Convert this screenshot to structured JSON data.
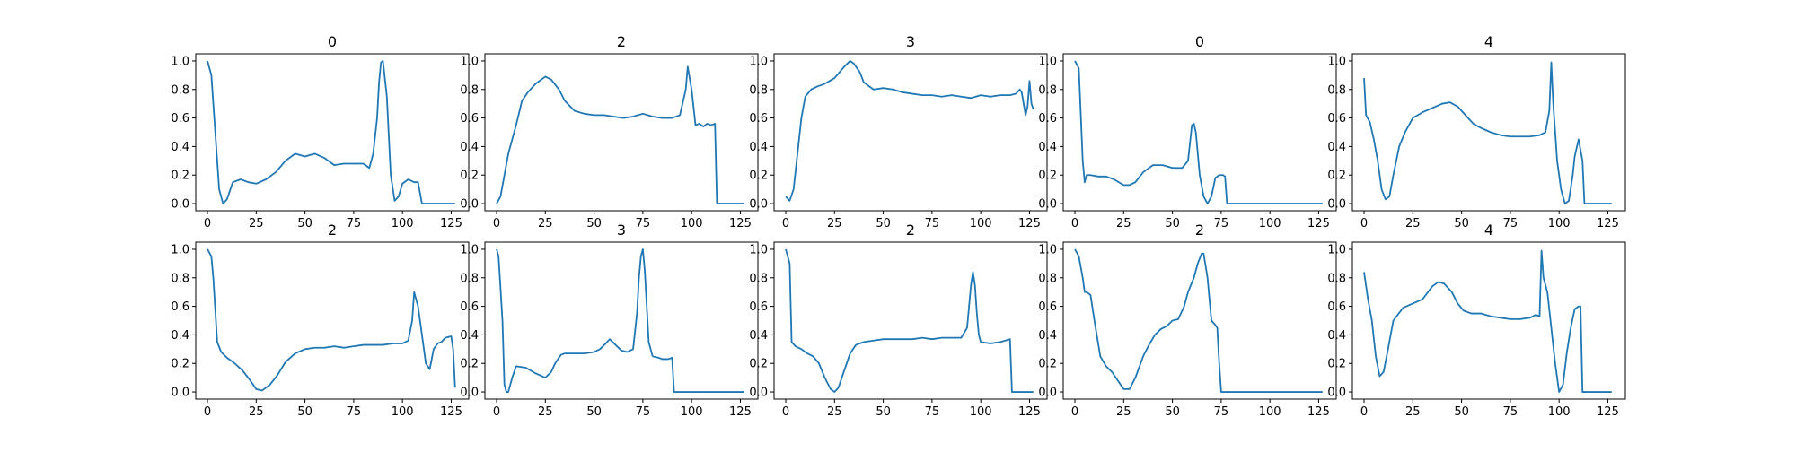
{
  "figure": {
    "line_color": "#1f77b4",
    "axis_color": "#000000",
    "background": "#ffffff"
  },
  "chart_data": [
    {
      "type": "line",
      "title": "0",
      "xlim": [
        -6,
        134
      ],
      "ylim": [
        -0.05,
        1.05
      ],
      "xticks": [
        0,
        25,
        50,
        75,
        100,
        125
      ],
      "yticks": [
        0.0,
        0.2,
        0.4,
        0.6,
        0.8,
        1.0
      ],
      "grid": false,
      "x": [
        0,
        2,
        4,
        6,
        8,
        10,
        13,
        17,
        21,
        25,
        30,
        35,
        40,
        45,
        50,
        55,
        60,
        65,
        70,
        75,
        80,
        83,
        85,
        87,
        88,
        89,
        90,
        92,
        94,
        96,
        98,
        100,
        103,
        106,
        108,
        110,
        111,
        112,
        115,
        120,
        125,
        127
      ],
      "y": [
        1.0,
        0.9,
        0.5,
        0.1,
        0.0,
        0.03,
        0.15,
        0.17,
        0.15,
        0.14,
        0.17,
        0.22,
        0.3,
        0.35,
        0.33,
        0.35,
        0.32,
        0.27,
        0.28,
        0.28,
        0.28,
        0.25,
        0.35,
        0.6,
        0.85,
        0.99,
        1.0,
        0.75,
        0.2,
        0.02,
        0.05,
        0.14,
        0.17,
        0.15,
        0.15,
        0.0,
        0.0,
        0.0,
        0.0,
        0.0,
        0.0,
        0.0
      ]
    },
    {
      "type": "line",
      "title": "2",
      "xlim": [
        -6,
        134
      ],
      "ylim": [
        -0.05,
        1.05
      ],
      "xticks": [
        0,
        25,
        50,
        75,
        100,
        125
      ],
      "yticks": [
        0.0,
        0.2,
        0.4,
        0.6,
        0.8,
        1.0
      ],
      "grid": false,
      "x": [
        0,
        2,
        4,
        6,
        8,
        10,
        13,
        16,
        20,
        25,
        28,
        32,
        35,
        40,
        45,
        50,
        55,
        60,
        65,
        70,
        75,
        80,
        85,
        90,
        94,
        97,
        98,
        100,
        102,
        104,
        106,
        108,
        110,
        112,
        113,
        115,
        120,
        125,
        127
      ],
      "y": [
        0.0,
        0.05,
        0.2,
        0.35,
        0.45,
        0.55,
        0.72,
        0.78,
        0.84,
        0.89,
        0.87,
        0.8,
        0.72,
        0.65,
        0.63,
        0.62,
        0.62,
        0.61,
        0.6,
        0.61,
        0.63,
        0.61,
        0.6,
        0.6,
        0.62,
        0.8,
        0.96,
        0.8,
        0.55,
        0.56,
        0.54,
        0.56,
        0.55,
        0.56,
        0.0,
        0.0,
        0.0,
        0.0,
        0.0
      ]
    },
    {
      "type": "line",
      "title": "3",
      "xlim": [
        -6,
        134
      ],
      "ylim": [
        -0.05,
        1.05
      ],
      "xticks": [
        0,
        25,
        50,
        75,
        100,
        125
      ],
      "yticks": [
        0.0,
        0.2,
        0.4,
        0.6,
        0.8,
        1.0
      ],
      "grid": false,
      "x": [
        0,
        2,
        4,
        6,
        8,
        10,
        13,
        16,
        20,
        25,
        30,
        33,
        35,
        38,
        40,
        45,
        50,
        55,
        60,
        65,
        70,
        75,
        80,
        85,
        90,
        95,
        100,
        105,
        110,
        115,
        118,
        120,
        121,
        122,
        123,
        124,
        125,
        126,
        127
      ],
      "y": [
        0.05,
        0.02,
        0.1,
        0.35,
        0.6,
        0.75,
        0.8,
        0.82,
        0.84,
        0.88,
        0.96,
        1.0,
        0.98,
        0.92,
        0.85,
        0.8,
        0.81,
        0.8,
        0.78,
        0.77,
        0.76,
        0.76,
        0.75,
        0.76,
        0.75,
        0.74,
        0.76,
        0.75,
        0.76,
        0.76,
        0.77,
        0.8,
        0.78,
        0.7,
        0.62,
        0.68,
        0.86,
        0.7,
        0.66
      ]
    },
    {
      "type": "line",
      "title": "0",
      "xlim": [
        -6,
        134
      ],
      "ylim": [
        -0.05,
        1.05
      ],
      "xticks": [
        0,
        25,
        50,
        75,
        100,
        125
      ],
      "yticks": [
        0.0,
        0.2,
        0.4,
        0.6,
        0.8,
        1.0
      ],
      "grid": false,
      "x": [
        0,
        2,
        4,
        5,
        6,
        8,
        12,
        16,
        20,
        25,
        28,
        31,
        35,
        40,
        45,
        50,
        55,
        58,
        60,
        61,
        62,
        64,
        66,
        68,
        70,
        72,
        74,
        76,
        77,
        78,
        80,
        90,
        100,
        110,
        120,
        125,
        127
      ],
      "y": [
        1.0,
        0.95,
        0.3,
        0.15,
        0.2,
        0.2,
        0.19,
        0.19,
        0.17,
        0.13,
        0.13,
        0.15,
        0.22,
        0.27,
        0.27,
        0.25,
        0.25,
        0.3,
        0.55,
        0.56,
        0.5,
        0.2,
        0.05,
        0.0,
        0.05,
        0.18,
        0.2,
        0.2,
        0.19,
        0.0,
        0.0,
        0.0,
        0.0,
        0.0,
        0.0,
        0.0,
        0.0
      ]
    },
    {
      "type": "line",
      "title": "4",
      "xlim": [
        -6,
        134
      ],
      "ylim": [
        -0.05,
        1.05
      ],
      "xticks": [
        0,
        25,
        50,
        75,
        100,
        125
      ],
      "yticks": [
        0.0,
        0.2,
        0.4,
        0.6,
        0.8,
        1.0
      ],
      "grid": false,
      "x": [
        0,
        1,
        3,
        5,
        7,
        9,
        11,
        13,
        15,
        18,
        21,
        25,
        30,
        35,
        40,
        44,
        48,
        52,
        56,
        60,
        65,
        70,
        75,
        80,
        85,
        90,
        93,
        95,
        96,
        97,
        99,
        101,
        103,
        105,
        107,
        108,
        110,
        112,
        113,
        114,
        115,
        120,
        125,
        127
      ],
      "y": [
        0.88,
        0.62,
        0.57,
        0.45,
        0.3,
        0.1,
        0.03,
        0.05,
        0.2,
        0.4,
        0.5,
        0.6,
        0.64,
        0.67,
        0.7,
        0.71,
        0.68,
        0.62,
        0.56,
        0.53,
        0.5,
        0.48,
        0.47,
        0.47,
        0.47,
        0.48,
        0.5,
        0.65,
        0.99,
        0.7,
        0.3,
        0.1,
        0.0,
        0.02,
        0.2,
        0.33,
        0.45,
        0.3,
        0.0,
        0.0,
        0.0,
        0.0,
        0.0,
        0.0
      ]
    },
    {
      "type": "line",
      "title": "2",
      "xlim": [
        -6,
        134
      ],
      "ylim": [
        -0.05,
        1.05
      ],
      "xticks": [
        0,
        25,
        50,
        75,
        100,
        125
      ],
      "yticks": [
        0.0,
        0.2,
        0.4,
        0.6,
        0.8,
        1.0
      ],
      "grid": false,
      "x": [
        0,
        2,
        3,
        5,
        7,
        10,
        14,
        18,
        22,
        25,
        28,
        32,
        36,
        40,
        45,
        50,
        55,
        60,
        65,
        70,
        75,
        80,
        85,
        90,
        95,
        100,
        103,
        105,
        106,
        108,
        110,
        112,
        114,
        116,
        118,
        120,
        122,
        125,
        126,
        127
      ],
      "y": [
        1.0,
        0.95,
        0.8,
        0.35,
        0.28,
        0.24,
        0.2,
        0.15,
        0.08,
        0.02,
        0.01,
        0.05,
        0.12,
        0.21,
        0.27,
        0.3,
        0.31,
        0.31,
        0.32,
        0.31,
        0.32,
        0.33,
        0.33,
        0.33,
        0.34,
        0.34,
        0.36,
        0.5,
        0.7,
        0.6,
        0.4,
        0.2,
        0.16,
        0.3,
        0.34,
        0.35,
        0.38,
        0.39,
        0.3,
        0.03
      ]
    },
    {
      "type": "line",
      "title": "3",
      "xlim": [
        -6,
        134
      ],
      "ylim": [
        -0.05,
        1.05
      ],
      "xticks": [
        0,
        25,
        50,
        75,
        100,
        125
      ],
      "yticks": [
        0.0,
        0.2,
        0.4,
        0.6,
        0.8,
        1.0
      ],
      "grid": false,
      "x": [
        0,
        1,
        3,
        4,
        5,
        6,
        8,
        10,
        15,
        20,
        25,
        28,
        30,
        33,
        35,
        40,
        45,
        50,
        53,
        56,
        58,
        61,
        64,
        67,
        70,
        72,
        73,
        74,
        75,
        76,
        77,
        78,
        80,
        83,
        85,
        88,
        90,
        91,
        92,
        95,
        100,
        110,
        120,
        127
      ],
      "y": [
        1.0,
        0.95,
        0.5,
        0.05,
        0.0,
        0.0,
        0.1,
        0.18,
        0.17,
        0.13,
        0.1,
        0.14,
        0.2,
        0.26,
        0.27,
        0.27,
        0.27,
        0.28,
        0.3,
        0.34,
        0.37,
        0.33,
        0.29,
        0.28,
        0.3,
        0.55,
        0.8,
        0.95,
        1.0,
        0.85,
        0.6,
        0.35,
        0.25,
        0.24,
        0.23,
        0.23,
        0.24,
        0.0,
        0.0,
        0.0,
        0.0,
        0.0,
        0.0,
        0.0
      ]
    },
    {
      "type": "line",
      "title": "2",
      "xlim": [
        -6,
        134
      ],
      "ylim": [
        -0.05,
        1.05
      ],
      "xticks": [
        0,
        25,
        50,
        75,
        100,
        125
      ],
      "yticks": [
        0.0,
        0.2,
        0.4,
        0.6,
        0.8,
        1.0
      ],
      "grid": false,
      "x": [
        0,
        2,
        3,
        5,
        8,
        11,
        14,
        17,
        20,
        23,
        25,
        27,
        30,
        33,
        36,
        40,
        45,
        50,
        55,
        60,
        65,
        70,
        75,
        80,
        85,
        90,
        93,
        95,
        96,
        97,
        98,
        99,
        100,
        105,
        110,
        115,
        116,
        120,
        125,
        127
      ],
      "y": [
        1.0,
        0.9,
        0.35,
        0.32,
        0.3,
        0.27,
        0.25,
        0.2,
        0.1,
        0.02,
        0.0,
        0.03,
        0.15,
        0.27,
        0.33,
        0.35,
        0.36,
        0.37,
        0.37,
        0.37,
        0.37,
        0.38,
        0.37,
        0.38,
        0.38,
        0.38,
        0.45,
        0.75,
        0.84,
        0.75,
        0.55,
        0.4,
        0.35,
        0.34,
        0.35,
        0.37,
        0.0,
        0.0,
        0.0,
        0.0
      ]
    },
    {
      "type": "line",
      "title": "2",
      "xlim": [
        -6,
        134
      ],
      "ylim": [
        -0.05,
        1.05
      ],
      "xticks": [
        0,
        25,
        50,
        75,
        100,
        125
      ],
      "yticks": [
        0.0,
        0.2,
        0.4,
        0.6,
        0.8,
        1.0
      ],
      "grid": false,
      "x": [
        0,
        2,
        4,
        5,
        6,
        8,
        10,
        13,
        16,
        19,
        22,
        25,
        28,
        31,
        35,
        38,
        41,
        44,
        47,
        50,
        53,
        56,
        58,
        61,
        63,
        65,
        66,
        68,
        70,
        72,
        73,
        74,
        75,
        80,
        90,
        100,
        110,
        120,
        125,
        127
      ],
      "y": [
        1.0,
        0.95,
        0.8,
        0.7,
        0.7,
        0.68,
        0.5,
        0.25,
        0.18,
        0.14,
        0.08,
        0.02,
        0.02,
        0.1,
        0.25,
        0.33,
        0.4,
        0.44,
        0.46,
        0.5,
        0.51,
        0.6,
        0.7,
        0.8,
        0.9,
        0.97,
        0.97,
        0.8,
        0.5,
        0.47,
        0.45,
        0.2,
        0.0,
        0.0,
        0.0,
        0.0,
        0.0,
        0.0,
        0.0,
        0.0
      ]
    },
    {
      "type": "line",
      "title": "4",
      "xlim": [
        -6,
        134
      ],
      "ylim": [
        -0.05,
        1.05
      ],
      "xticks": [
        0,
        25,
        50,
        75,
        100,
        125
      ],
      "yticks": [
        0.0,
        0.2,
        0.4,
        0.6,
        0.8,
        1.0
      ],
      "grid": false,
      "x": [
        0,
        2,
        4,
        6,
        8,
        10,
        12,
        15,
        20,
        25,
        30,
        35,
        38,
        41,
        45,
        48,
        51,
        55,
        60,
        65,
        70,
        75,
        80,
        85,
        88,
        90,
        91,
        92,
        94,
        96,
        98,
        100,
        102,
        104,
        106,
        108,
        110,
        111,
        112,
        115,
        120,
        125,
        127
      ],
      "y": [
        0.84,
        0.65,
        0.5,
        0.25,
        0.11,
        0.14,
        0.28,
        0.5,
        0.59,
        0.62,
        0.65,
        0.74,
        0.77,
        0.76,
        0.7,
        0.62,
        0.57,
        0.55,
        0.55,
        0.53,
        0.52,
        0.51,
        0.51,
        0.52,
        0.54,
        0.53,
        0.99,
        0.8,
        0.7,
        0.45,
        0.2,
        0.0,
        0.05,
        0.28,
        0.45,
        0.58,
        0.6,
        0.6,
        0.0,
        0.0,
        0.0,
        0.0,
        0.0
      ]
    }
  ]
}
